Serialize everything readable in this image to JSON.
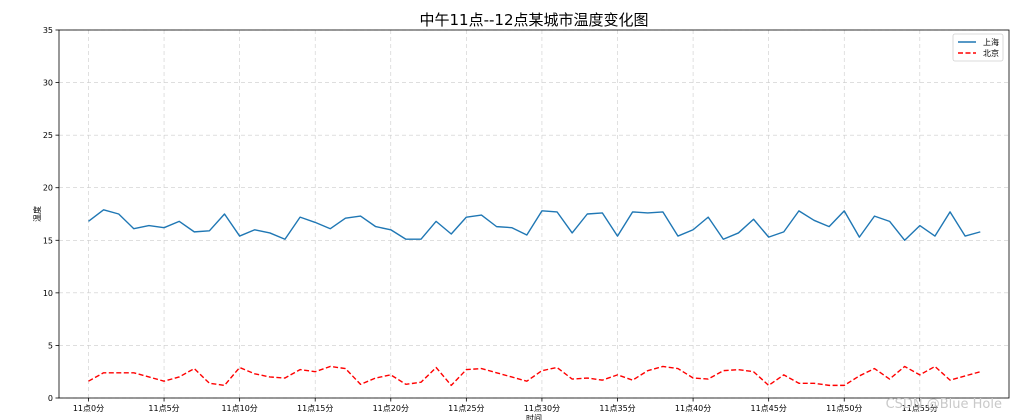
{
  "watermark": "CSDN @Blue Hole",
  "chart_data": {
    "type": "line",
    "title": "中午11点--12点某城市温度变化图",
    "xlabel": "时间",
    "ylabel": "温度",
    "ylim": [
      0,
      35
    ],
    "yticks": [
      0,
      5,
      10,
      15,
      20,
      25,
      30,
      35
    ],
    "grid": true,
    "legend": "top-right",
    "x": [
      0,
      1,
      2,
      3,
      4,
      5,
      6,
      7,
      8,
      9,
      10,
      11,
      12,
      13,
      14,
      15,
      16,
      17,
      18,
      19,
      20,
      21,
      22,
      23,
      24,
      25,
      26,
      27,
      28,
      29,
      30,
      31,
      32,
      33,
      34,
      35,
      36,
      37,
      38,
      39,
      40,
      41,
      42,
      43,
      44,
      45,
      46,
      47,
      48,
      49,
      50,
      51,
      52,
      53,
      54,
      55,
      56,
      57,
      58,
      59
    ],
    "xtick_positions": [
      0,
      5,
      10,
      15,
      20,
      25,
      30,
      35,
      40,
      45,
      50,
      55
    ],
    "xtick_labels": [
      "11点0分",
      "11点5分",
      "11点10分",
      "11点15分",
      "11点20分",
      "11点25分",
      "11点30分",
      "11点35分",
      "11点40分",
      "11点45分",
      "11点50分",
      "11点55分"
    ],
    "series": [
      {
        "name": "上海",
        "color": "#1f77b4",
        "style": "solid",
        "values": [
          16.8,
          17.9,
          17.5,
          16.1,
          16.4,
          16.2,
          16.8,
          15.8,
          15.9,
          17.5,
          15.4,
          16.0,
          15.7,
          15.1,
          17.2,
          16.7,
          16.1,
          17.1,
          17.3,
          16.3,
          16.0,
          15.1,
          15.1,
          16.8,
          15.6,
          17.2,
          17.4,
          16.3,
          16.2,
          15.5,
          17.8,
          17.7,
          15.7,
          17.5,
          17.6,
          15.4,
          17.7,
          17.6,
          17.7,
          15.4,
          16.0,
          17.2,
          15.1,
          15.7,
          17.0,
          15.3,
          15.8,
          17.8,
          16.9,
          16.3,
          17.8,
          15.3,
          17.3,
          16.8,
          15.0,
          16.4,
          15.4,
          17.7,
          15.4,
          15.8
        ]
      },
      {
        "name": "北京",
        "color": "#ff0000",
        "style": "dashed",
        "values": [
          1.6,
          2.4,
          2.4,
          2.4,
          2.0,
          1.6,
          2.0,
          2.8,
          1.4,
          1.2,
          2.9,
          2.3,
          2.0,
          1.9,
          2.7,
          2.5,
          3.0,
          2.8,
          1.3,
          1.9,
          2.2,
          1.3,
          1.5,
          2.9,
          1.2,
          2.7,
          2.8,
          2.4,
          2.0,
          1.6,
          2.6,
          2.9,
          1.8,
          1.9,
          1.7,
          2.2,
          1.7,
          2.6,
          3.0,
          2.8,
          1.9,
          1.8,
          2.6,
          2.7,
          2.5,
          1.2,
          2.2,
          1.4,
          1.4,
          1.2,
          1.2,
          2.1,
          2.8,
          1.8,
          3.0,
          2.2,
          3.0,
          1.7,
          2.1,
          2.5
        ]
      }
    ]
  }
}
